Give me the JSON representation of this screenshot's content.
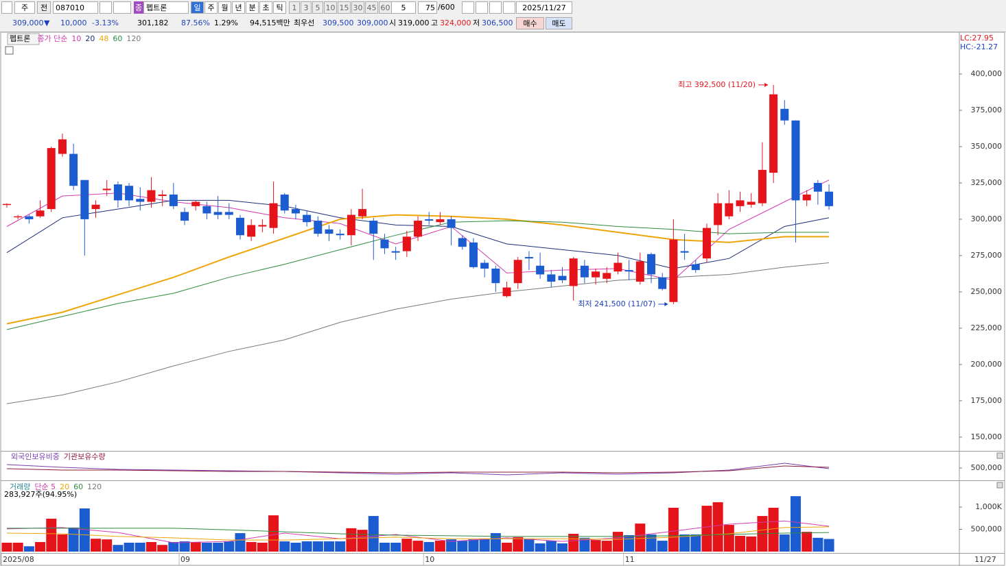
{
  "toolbar": {
    "row1": {
      "period": "주",
      "prev": "전",
      "code": "087010",
      "market": "종",
      "name": "펩트론",
      "units": [
        "일",
        "주",
        "월",
        "년",
        "분",
        "초",
        "틱"
      ],
      "minutes": [
        "1",
        "3",
        "5",
        "10",
        "15",
        "30",
        "45",
        "60"
      ],
      "step": "5",
      "count": "75",
      "total": "/600",
      "date": "2025/11/27"
    },
    "row2": {
      "price": "309,000",
      "arrow": "▼",
      "change": "10,000",
      "rate": "-3.13%",
      "volume": "301,182",
      "ratio": "87.56%",
      "turnover": "1.29%",
      "amount": "94,515백만",
      "best": "최우선",
      "ask": "309,500",
      "bid": "309,000",
      "open_label": "시",
      "open": "319,000",
      "high_label": "고",
      "high": "324,000",
      "low_label": "저",
      "low": "306,500",
      "buy": "매수",
      "sell": "매도"
    }
  },
  "chart_data": [
    {
      "type": "candlestick",
      "title": "펩트론",
      "legend_prefix": "종가 단순",
      "categories": [
        "2025/08",
        null,
        null,
        null,
        null,
        null,
        null,
        null,
        null,
        null,
        null,
        null,
        null,
        null,
        null,
        null,
        "09",
        null,
        null,
        null,
        null,
        null,
        null,
        null,
        null,
        null,
        null,
        null,
        null,
        null,
        null,
        null,
        null,
        null,
        null,
        null,
        null,
        null,
        "10",
        null,
        null,
        null,
        null,
        null,
        null,
        null,
        null,
        null,
        null,
        null,
        null,
        null,
        null,
        null,
        null,
        null,
        "11",
        null,
        null,
        null,
        null,
        null,
        null,
        null,
        null,
        null,
        null,
        null,
        null,
        null,
        null,
        null,
        null,
        null,
        "11/27"
      ],
      "open": [
        310000,
        301500,
        302000,
        302000,
        307000,
        345000,
        345000,
        327000,
        307000,
        320000,
        324000,
        323000,
        314000,
        312000,
        316000,
        317000,
        305000,
        309000,
        309000,
        305000,
        305000,
        301000,
        288000,
        295000,
        294000,
        317000,
        307000,
        303000,
        299000,
        293000,
        290000,
        289000,
        302000,
        299000,
        286000,
        278000,
        278000,
        288000,
        300000,
        298000,
        300000,
        287000,
        284000,
        270000,
        266000,
        247000,
        256000,
        274000,
        268000,
        262000,
        261000,
        254000,
        268000,
        260000,
        259000,
        264000,
        265000,
        257000,
        276000,
        260000,
        243000,
        278000,
        269000,
        273000,
        296000,
        302000,
        309000,
        310000,
        311000,
        332000,
        376000,
        368000,
        313000,
        325000,
        319000
      ],
      "high": [
        311000,
        303000,
        303000,
        313000,
        350000,
        359000,
        352000,
        327000,
        313000,
        327000,
        326000,
        325000,
        322000,
        329000,
        320000,
        325000,
        308000,
        313000,
        312000,
        316000,
        311000,
        303000,
        300000,
        300000,
        326000,
        318000,
        310000,
        306000,
        302000,
        296000,
        293000,
        307000,
        321000,
        301000,
        290000,
        281000,
        292000,
        302000,
        305000,
        305000,
        302000,
        289000,
        287000,
        272000,
        268000,
        257000,
        274000,
        278000,
        277000,
        265000,
        267000,
        274000,
        272000,
        266000,
        267000,
        277000,
        272000,
        277000,
        277000,
        263000,
        300000,
        290000,
        272000,
        297000,
        318000,
        320000,
        319000,
        318000,
        353000,
        392500,
        382000,
        368000,
        320000,
        327000,
        324000
      ],
      "low": [
        308000,
        300000,
        297000,
        301000,
        305000,
        343000,
        320000,
        275000,
        301000,
        316000,
        308000,
        309000,
        306000,
        308000,
        309000,
        307000,
        296000,
        306000,
        300000,
        300000,
        300000,
        286000,
        285000,
        291000,
        290000,
        304000,
        300000,
        295000,
        288000,
        285000,
        286000,
        282000,
        300000,
        272000,
        276000,
        272000,
        274000,
        285000,
        296000,
        296000,
        282000,
        279000,
        266000,
        260000,
        250000,
        246000,
        252000,
        265000,
        259000,
        253000,
        256000,
        244000,
        256000,
        255000,
        256000,
        262000,
        258000,
        255000,
        256000,
        251000,
        241500,
        272000,
        263000,
        270000,
        289000,
        300000,
        305000,
        308000,
        309000,
        325000,
        365000,
        284000,
        309000,
        310000,
        306500
      ],
      "close": [
        310500,
        302000,
        300000,
        306000,
        349000,
        355000,
        323000,
        300000,
        310000,
        321000,
        313000,
        313000,
        312000,
        320000,
        317000,
        309000,
        299000,
        312000,
        304000,
        303000,
        303000,
        289000,
        296000,
        296000,
        311000,
        306000,
        304000,
        298000,
        290000,
        290000,
        289000,
        303000,
        307000,
        290000,
        280000,
        277000,
        288000,
        299000,
        299000,
        300000,
        294000,
        281000,
        267000,
        266000,
        256000,
        253000,
        272000,
        273000,
        262000,
        257000,
        258000,
        273000,
        260000,
        264000,
        263000,
        270000,
        264000,
        271000,
        262000,
        252000,
        286000,
        277000,
        265000,
        294000,
        311000,
        311000,
        313000,
        312000,
        334000,
        386000,
        368000,
        313000,
        317000,
        319000,
        309000
      ],
      "up_color": "#e5141b",
      "down_color": "#1c5cd1",
      "ylim": [
        140500,
        428300
      ],
      "yticks": [
        {
          "value": 150000,
          "label": "150,000"
        },
        {
          "value": 175000,
          "label": "175,000"
        },
        {
          "value": 200000,
          "label": "200,000"
        },
        {
          "value": 225000,
          "label": "225,000"
        },
        {
          "value": 250000,
          "label": "250,000"
        },
        {
          "value": 275000,
          "label": "275,000"
        },
        {
          "value": 300000,
          "label": "300,000"
        },
        {
          "value": 325000,
          "label": "325,000"
        },
        {
          "value": 350000,
          "label": "350,000"
        },
        {
          "value": 375000,
          "label": "375,000"
        },
        {
          "value": 400000,
          "label": "400,000"
        }
      ],
      "series": [
        {
          "name": "10",
          "color": "#d13ab0",
          "x": [
            0,
            5,
            10,
            15,
            20,
            25,
            30,
            35,
            40,
            45,
            50,
            55,
            60,
            65,
            70,
            74
          ],
          "values": [
            295000,
            316000,
            318000,
            312000,
            308000,
            301000,
            297000,
            283000,
            295000,
            263000,
            265000,
            266000,
            258000,
            293000,
            312000,
            327000
          ]
        },
        {
          "name": "20",
          "color": "#1c2c7a",
          "x": [
            0,
            5,
            10,
            15,
            20,
            25,
            30,
            35,
            40,
            45,
            50,
            55,
            60,
            65,
            70,
            74
          ],
          "values": [
            277000,
            301000,
            307000,
            313000,
            313000,
            309000,
            301000,
            296000,
            295000,
            283000,
            279000,
            275000,
            266000,
            273000,
            295000,
            301000
          ]
        },
        {
          "name": "48",
          "color": "#eea50a",
          "x": [
            0,
            5,
            10,
            15,
            20,
            25,
            30,
            35,
            40,
            45,
            50,
            55,
            60,
            65,
            70,
            74
          ],
          "values": [
            228000,
            236000,
            248000,
            260000,
            274000,
            287000,
            300000,
            303000,
            302000,
            300000,
            296000,
            291000,
            286000,
            284000,
            288000,
            288000
          ]
        },
        {
          "name": "60",
          "color": "#2e8b3e",
          "x": [
            0,
            5,
            10,
            15,
            20,
            25,
            30,
            35,
            40,
            45,
            50,
            55,
            60,
            65,
            70,
            74
          ],
          "values": [
            224000,
            233000,
            242000,
            249000,
            260000,
            269000,
            279000,
            289000,
            298000,
            299000,
            298000,
            295000,
            293000,
            290000,
            291000,
            291000
          ]
        },
        {
          "name": "120",
          "color": "#777777",
          "x": [
            0,
            5,
            10,
            15,
            20,
            25,
            30,
            35,
            40,
            45,
            50,
            55,
            60,
            65,
            70,
            74
          ],
          "values": [
            173000,
            179000,
            188000,
            199000,
            209000,
            217000,
            229000,
            238000,
            245000,
            250000,
            254000,
            258000,
            260000,
            262000,
            267000,
            270000
          ]
        }
      ],
      "annotations": [
        {
          "text": "최고 392,500 (11/20)",
          "index": 69,
          "value": 392500,
          "color": "#e5141b"
        },
        {
          "text": "최저 241,500 (11/07)",
          "index": 60,
          "value": 241500,
          "color": "#1c3fc0"
        }
      ],
      "corner_labels": [
        "LC:27.95",
        "HC:-21.27"
      ]
    },
    {
      "type": "line",
      "series": [
        {
          "name": "외국인보유비중",
          "color": "#7a3fb0",
          "x": [
            0,
            5,
            10,
            15,
            20,
            25,
            30,
            35,
            40,
            45,
            50,
            55,
            60,
            65,
            70,
            74
          ],
          "values": [
            525000,
            505000,
            490000,
            485000,
            480000,
            475000,
            465000,
            455000,
            465000,
            450000,
            465000,
            455000,
            465000,
            485000,
            535000,
            495000
          ]
        },
        {
          "name": "기관보유수량",
          "color": "#8b1a3a",
          "x": [
            0,
            5,
            10,
            15,
            20,
            25,
            30,
            35,
            40,
            45,
            50,
            55,
            60,
            65,
            70,
            74
          ],
          "values": [
            495000,
            485000,
            485000,
            480000,
            475000,
            475000,
            470000,
            465000,
            470000,
            470000,
            470000,
            465000,
            470000,
            480000,
            515000,
            505000
          ]
        }
      ],
      "ylim": [
        415000,
        615000
      ],
      "yticks": [
        {
          "value": 500000,
          "label": "500,000"
        }
      ]
    },
    {
      "type": "bar",
      "title": "거래량",
      "title_color": "#2a8a9a",
      "subtitle": "283,927주(94.95%)",
      "values": [
        200000,
        200000,
        120000,
        215000,
        740000,
        385000,
        540000,
        970000,
        290000,
        275000,
        150000,
        200000,
        200000,
        215000,
        150000,
        215000,
        230000,
        215000,
        200000,
        200000,
        230000,
        415000,
        215000,
        200000,
        815000,
        230000,
        200000,
        230000,
        230000,
        230000,
        230000,
        525000,
        490000,
        800000,
        200000,
        200000,
        290000,
        245000,
        215000,
        245000,
        275000,
        245000,
        275000,
        290000,
        415000,
        200000,
        325000,
        290000,
        185000,
        245000,
        185000,
        400000,
        310000,
        260000,
        245000,
        445000,
        370000,
        630000,
        385000,
        245000,
        985000,
        385000,
        385000,
        1030000,
        1110000,
        600000,
        355000,
        340000,
        800000,
        985000,
        385000,
        1245000,
        445000,
        310000,
        283927
      ],
      "series": [
        {
          "name": "단순 5",
          "color": "#d13ab0",
          "x": [
            0,
            5,
            10,
            15,
            20,
            25,
            30,
            35,
            40,
            45,
            50,
            55,
            60,
            65,
            70,
            74
          ],
          "values": [
            510000,
            540000,
            430000,
            200000,
            230000,
            415000,
            290000,
            385000,
            230000,
            310000,
            230000,
            310000,
            460000,
            615000,
            690000,
            570000
          ]
        },
        {
          "name": "20",
          "color": "#eea50a",
          "x": [
            0,
            5,
            10,
            15,
            20,
            25,
            30,
            35,
            40,
            45,
            50,
            55,
            60,
            65,
            70,
            74
          ],
          "values": [
            415000,
            400000,
            340000,
            310000,
            260000,
            260000,
            290000,
            325000,
            290000,
            290000,
            290000,
            275000,
            325000,
            400000,
            540000,
            555000
          ]
        },
        {
          "name": "60",
          "color": "#2e8b3e",
          "x": [
            0,
            5,
            10,
            15,
            20,
            25,
            30,
            35,
            40,
            45,
            50,
            55,
            60,
            65,
            70,
            74
          ],
          "values": [
            525000,
            525000,
            525000,
            525000,
            490000,
            445000,
            400000,
            370000,
            355000,
            340000,
            340000,
            340000,
            355000,
            385000,
            415000,
            430000
          ]
        }
      ],
      "extra_legend": [
        {
          "text": "120",
          "color": "#777777"
        }
      ],
      "ylim": [
        0,
        1570000
      ],
      "yticks": [
        {
          "value": 500000,
          "label": "500,000"
        },
        {
          "value": 1000000,
          "label": "1,000K"
        }
      ]
    }
  ]
}
